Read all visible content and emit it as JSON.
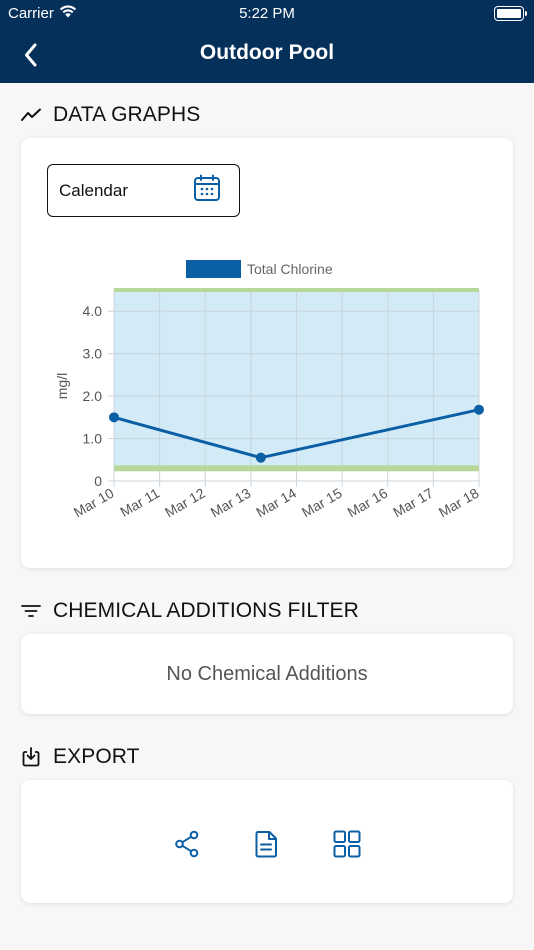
{
  "status_bar": {
    "carrier": "Carrier",
    "time": "5:22 PM"
  },
  "nav": {
    "title": "Outdoor Pool",
    "back_icon": "chevron-left-icon"
  },
  "sections": {
    "graphs": {
      "label": "DATA GRAPHS",
      "icon": "trend-line-icon"
    },
    "filter": {
      "label": "CHEMICAL ADDITIONS FILTER",
      "icon": "filter-icon"
    },
    "export": {
      "label": "EXPORT",
      "icon": "download-icon"
    }
  },
  "calendar": {
    "label": "Calendar",
    "icon": "calendar-icon"
  },
  "chemical_additions": {
    "empty_text": "No Chemical Additions"
  },
  "export_actions": [
    {
      "name": "share",
      "icon": "share-icon"
    },
    {
      "name": "document",
      "icon": "document-icon"
    },
    {
      "name": "grid",
      "icon": "grid-icon"
    }
  ],
  "colors": {
    "header_bg": "#04305a",
    "series_line": "#0b5fa5",
    "range_fill": "#d2ebf7",
    "band": "#b8d89a",
    "icon_blue": "#0b5fa5"
  },
  "chart_data": {
    "type": "line",
    "legend": "Total Chlorine",
    "legend_position": "top-center",
    "ylabel": "mg/l",
    "ylim": [
      0,
      4.5
    ],
    "yticks": [
      "0",
      "1.0",
      "2.0",
      "3.0",
      "4.0"
    ],
    "xticks": [
      "Mar 10",
      "Mar 11",
      "Mar 12",
      "Mar 13",
      "Mar 14",
      "Mar 15",
      "Mar 16",
      "Mar 17",
      "Mar 18"
    ],
    "x_start": "Mar 10",
    "x_end": "Mar 18",
    "points": [
      {
        "x": "Mar 10",
        "y": 1.5
      },
      {
        "x": "Mar 13",
        "y": 0.55
      },
      {
        "x": "Mar 18",
        "y": 1.68
      }
    ],
    "target_range": {
      "low": 0.3,
      "high": 4.5
    },
    "grid": true
  }
}
